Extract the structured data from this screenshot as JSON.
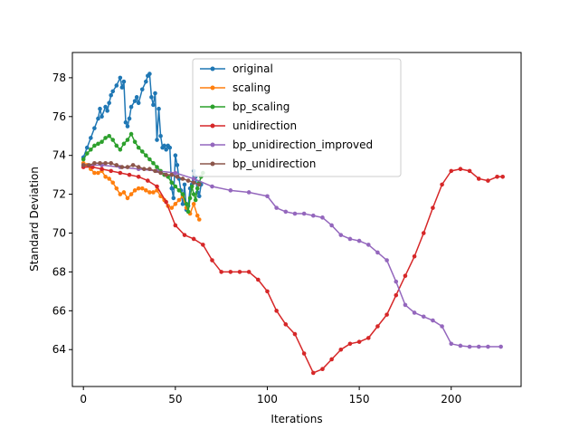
{
  "chart_data": {
    "type": "line",
    "title": "",
    "xlabel": "Iterations",
    "ylabel": "Standard Deviation",
    "xlim": [
      -6,
      238
    ],
    "ylim": [
      62.1,
      79.3
    ],
    "xticks": [
      0,
      50,
      100,
      150,
      200
    ],
    "yticks": [
      64,
      66,
      68,
      70,
      72,
      74,
      76,
      78
    ],
    "grid": false,
    "legend_position": "top-center",
    "series": [
      {
        "name": "original",
        "color": "#1f77b4",
        "x": [
          0,
          2,
          4,
          6,
          8,
          9,
          10,
          12,
          13,
          14,
          15,
          16,
          18,
          20,
          21,
          22,
          23,
          24,
          25,
          26,
          28,
          29,
          30,
          32,
          34,
          35,
          36,
          37,
          38,
          39,
          40,
          41,
          42,
          43,
          44,
          45,
          46,
          47,
          48,
          49,
          50,
          51,
          52,
          53,
          54,
          55,
          56,
          57,
          58,
          59,
          60,
          61,
          62,
          63,
          64
        ],
        "y": [
          73.9,
          74.4,
          74.9,
          75.4,
          75.9,
          76.4,
          76.0,
          76.5,
          76.3,
          76.7,
          77.1,
          77.3,
          77.6,
          78.0,
          77.5,
          77.8,
          75.7,
          75.5,
          75.9,
          76.5,
          76.8,
          77.0,
          76.7,
          77.4,
          77.8,
          78.1,
          78.2,
          77.0,
          76.6,
          77.2,
          74.8,
          76.4,
          75.0,
          74.4,
          74.5,
          74.3,
          74.5,
          74.4,
          72.3,
          71.8,
          74.0,
          73.5,
          72.8,
          72.2,
          71.5,
          72.5,
          71.2,
          71.4,
          72.3,
          72.5,
          73.2,
          72.9,
          72.1,
          71.9,
          72.5
        ]
      },
      {
        "name": "scaling",
        "color": "#ff7f0e",
        "x": [
          0,
          2,
          4,
          6,
          8,
          10,
          12,
          14,
          16,
          18,
          20,
          22,
          24,
          26,
          28,
          30,
          32,
          34,
          36,
          38,
          40,
          42,
          44,
          46,
          48,
          50,
          52,
          54,
          56,
          58,
          60,
          62,
          63
        ],
        "y": [
          73.6,
          73.5,
          73.3,
          73.1,
          73.1,
          73.2,
          72.9,
          72.8,
          72.6,
          72.3,
          72.0,
          72.1,
          71.8,
          72.0,
          72.2,
          72.3,
          72.3,
          72.2,
          72.1,
          72.1,
          72.2,
          71.9,
          71.7,
          71.4,
          71.3,
          71.5,
          71.7,
          71.9,
          71.3,
          71.0,
          71.5,
          70.9,
          70.7
        ]
      },
      {
        "name": "bp_scaling",
        "color": "#2ca02c",
        "x": [
          0,
          2,
          4,
          6,
          8,
          10,
          12,
          14,
          16,
          18,
          20,
          22,
          24,
          26,
          28,
          30,
          32,
          34,
          36,
          38,
          40,
          42,
          44,
          46,
          48,
          50,
          52,
          54,
          56,
          57,
          58,
          59,
          60,
          61,
          62,
          63,
          64,
          65
        ],
        "y": [
          73.8,
          74.1,
          74.3,
          74.5,
          74.6,
          74.7,
          74.9,
          75.0,
          74.8,
          74.5,
          74.3,
          74.6,
          74.8,
          75.1,
          74.7,
          74.4,
          74.2,
          74.0,
          73.8,
          73.6,
          73.4,
          73.2,
          73.0,
          72.9,
          72.6,
          72.4,
          72.2,
          72.0,
          71.5,
          71.1,
          71.8,
          72.4,
          72.0,
          71.7,
          72.3,
          72.6,
          72.9,
          73.1
        ]
      },
      {
        "name": "unidirection",
        "color": "#d62728",
        "x": [
          0,
          5,
          10,
          15,
          20,
          25,
          30,
          35,
          40,
          45,
          50,
          55,
          60,
          65,
          70,
          75,
          80,
          85,
          90,
          95,
          100,
          105,
          110,
          115,
          120,
          125,
          130,
          135,
          140,
          145,
          150,
          155,
          160,
          165,
          170,
          175,
          180,
          185,
          190,
          195,
          200,
          205,
          210,
          215,
          220,
          225,
          228
        ],
        "y": [
          73.4,
          73.4,
          73.3,
          73.2,
          73.1,
          73.0,
          72.9,
          72.7,
          72.4,
          71.6,
          70.4,
          69.9,
          69.7,
          69.4,
          68.6,
          68.0,
          68.0,
          68.0,
          68.0,
          67.6,
          67.0,
          66.0,
          65.3,
          64.8,
          63.8,
          62.8,
          63.0,
          63.5,
          64.0,
          64.3,
          64.4,
          64.6,
          65.2,
          65.8,
          66.8,
          67.8,
          68.8,
          70.0,
          71.3,
          72.5,
          73.2,
          73.3,
          73.2,
          72.8,
          72.7,
          72.9,
          72.9
        ]
      },
      {
        "name": "bp_unidirection_improved",
        "color": "#9467bd",
        "x": [
          0,
          10,
          20,
          30,
          40,
          50,
          60,
          70,
          80,
          90,
          100,
          105,
          110,
          115,
          120,
          125,
          130,
          135,
          140,
          145,
          150,
          155,
          160,
          165,
          170,
          175,
          180,
          185,
          190,
          195,
          200,
          205,
          210,
          215,
          220,
          227
        ],
        "y": [
          73.5,
          73.5,
          73.4,
          73.3,
          73.2,
          73.1,
          72.8,
          72.4,
          72.2,
          72.1,
          71.9,
          71.3,
          71.1,
          71.0,
          71.0,
          70.9,
          70.8,
          70.4,
          69.9,
          69.7,
          69.6,
          69.4,
          69.0,
          68.6,
          67.5,
          66.3,
          65.9,
          65.7,
          65.5,
          65.2,
          64.3,
          64.2,
          64.15,
          64.15,
          64.15,
          64.15
        ]
      },
      {
        "name": "bp_unidirection",
        "color": "#8c564b",
        "x": [
          0,
          3,
          6,
          9,
          12,
          15,
          18,
          21,
          24,
          27,
          30,
          33,
          36,
          39,
          42,
          45,
          48,
          51,
          54,
          57,
          60,
          63
        ],
        "y": [
          73.5,
          73.5,
          73.6,
          73.6,
          73.6,
          73.6,
          73.5,
          73.4,
          73.4,
          73.5,
          73.4,
          73.3,
          73.3,
          73.2,
          73.1,
          73.0,
          73.0,
          72.9,
          72.8,
          72.7,
          72.6,
          72.5
        ]
      }
    ]
  }
}
